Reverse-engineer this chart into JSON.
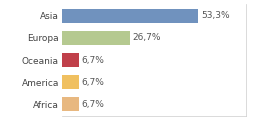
{
  "categories": [
    "Asia",
    "Europa",
    "Oceania",
    "America",
    "Africa"
  ],
  "values": [
    53.3,
    26.7,
    6.7,
    6.7,
    6.7
  ],
  "labels": [
    "53,3%",
    "26,7%",
    "6,7%",
    "6,7%",
    "6,7%"
  ],
  "bar_colors": [
    "#7092be",
    "#b5c990",
    "#c0404a",
    "#f0c060",
    "#e8b880"
  ],
  "background_color": "#ffffff",
  "xlim": [
    0,
    72
  ],
  "label_fontsize": 6.5,
  "category_fontsize": 6.5
}
